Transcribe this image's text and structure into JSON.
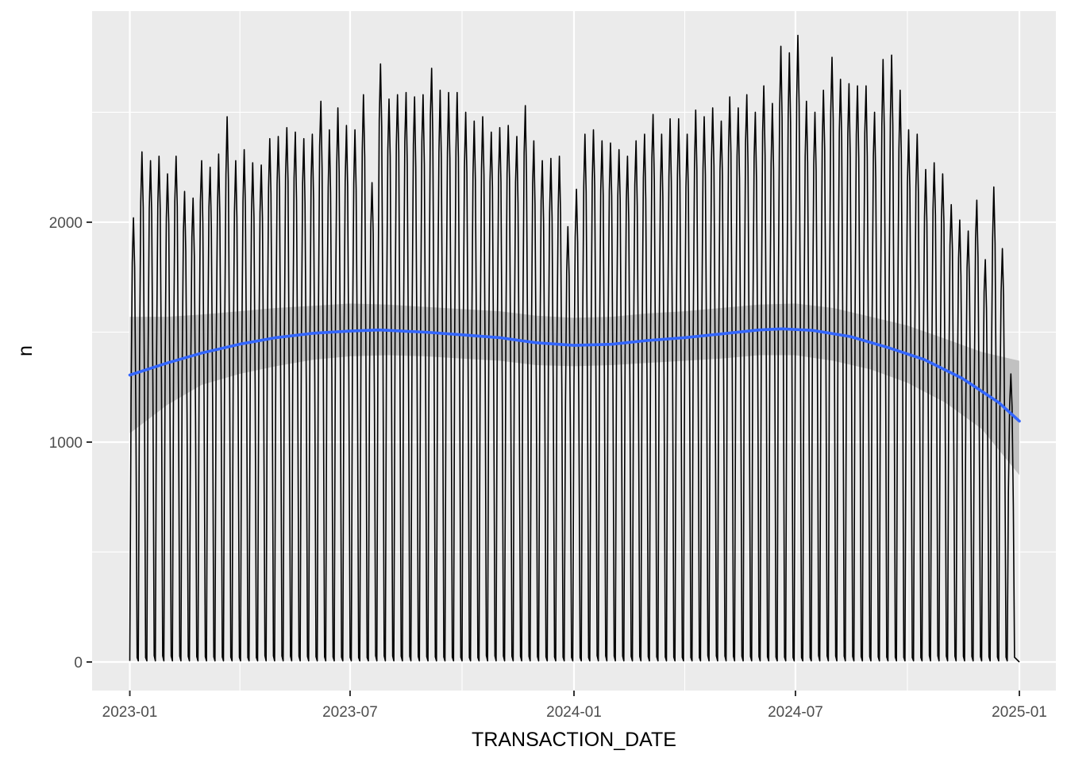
{
  "chart_data": {
    "type": "line",
    "xlabel": "TRANSACTION_DATE",
    "ylabel": "n",
    "x_range": [
      "2022-12-01",
      "2025-01-31"
    ],
    "ylim": [
      -130,
      2960
    ],
    "x_ticks": [
      {
        "date": "2023-01-01",
        "label": "2023-01"
      },
      {
        "date": "2023-07-01",
        "label": "2023-07"
      },
      {
        "date": "2024-01-01",
        "label": "2024-01"
      },
      {
        "date": "2024-07-01",
        "label": "2024-07"
      },
      {
        "date": "2025-01-01",
        "label": "2025-01"
      }
    ],
    "y_ticks": [
      {
        "value": 0,
        "label": "0"
      },
      {
        "value": 1000,
        "label": "1000"
      },
      {
        "value": 2000,
        "label": "2000"
      }
    ],
    "grid": true,
    "legend": "none",
    "colors": {
      "panel_background": "#ebebeb",
      "grid": "#ffffff",
      "series_line": "#000000",
      "smooth_line": "#3366ff",
      "confidence_band": "#b3b3b3"
    },
    "series": [
      {
        "kind": "daily_counts",
        "weekly_cycle": "weekday highs, weekend lows near 0",
        "weekly_peaks": [
          [
            "2023-01-04",
            2020
          ],
          [
            "2023-01-11",
            2320
          ],
          [
            "2023-01-18",
            2280
          ],
          [
            "2023-01-25",
            2300
          ],
          [
            "2023-02-01",
            2220
          ],
          [
            "2023-02-08",
            2300
          ],
          [
            "2023-02-15",
            2140
          ],
          [
            "2023-02-22",
            2110
          ],
          [
            "2023-03-01",
            2280
          ],
          [
            "2023-03-08",
            2250
          ],
          [
            "2023-03-15",
            2310
          ],
          [
            "2023-03-22",
            2480
          ],
          [
            "2023-03-29",
            2280
          ],
          [
            "2023-04-05",
            2330
          ],
          [
            "2023-04-12",
            2270
          ],
          [
            "2023-04-19",
            2260
          ],
          [
            "2023-04-26",
            2380
          ],
          [
            "2023-05-03",
            2390
          ],
          [
            "2023-05-10",
            2430
          ],
          [
            "2023-05-17",
            2410
          ],
          [
            "2023-05-24",
            2380
          ],
          [
            "2023-05-31",
            2400
          ],
          [
            "2023-06-07",
            2550
          ],
          [
            "2023-06-14",
            2420
          ],
          [
            "2023-06-21",
            2520
          ],
          [
            "2023-06-28",
            2440
          ],
          [
            "2023-07-05",
            2420
          ],
          [
            "2023-07-12",
            2580
          ],
          [
            "2023-07-19",
            2180
          ],
          [
            "2023-07-26",
            2720
          ],
          [
            "2023-08-02",
            2560
          ],
          [
            "2023-08-09",
            2580
          ],
          [
            "2023-08-16",
            2590
          ],
          [
            "2023-08-23",
            2570
          ],
          [
            "2023-08-30",
            2580
          ],
          [
            "2023-09-06",
            2700
          ],
          [
            "2023-09-13",
            2600
          ],
          [
            "2023-09-20",
            2590
          ],
          [
            "2023-09-27",
            2590
          ],
          [
            "2023-10-04",
            2500
          ],
          [
            "2023-10-11",
            2460
          ],
          [
            "2023-10-18",
            2480
          ],
          [
            "2023-10-25",
            2410
          ],
          [
            "2023-11-01",
            2430
          ],
          [
            "2023-11-08",
            2440
          ],
          [
            "2023-11-15",
            2390
          ],
          [
            "2023-11-22",
            2530
          ],
          [
            "2023-11-29",
            2370
          ],
          [
            "2023-12-06",
            2280
          ],
          [
            "2023-12-13",
            2290
          ],
          [
            "2023-12-20",
            2300
          ],
          [
            "2023-12-27",
            1980
          ],
          [
            "2024-01-03",
            2150
          ],
          [
            "2024-01-10",
            2400
          ],
          [
            "2024-01-17",
            2420
          ],
          [
            "2024-01-24",
            2370
          ],
          [
            "2024-01-31",
            2360
          ],
          [
            "2024-02-07",
            2330
          ],
          [
            "2024-02-14",
            2300
          ],
          [
            "2024-02-21",
            2370
          ],
          [
            "2024-02-28",
            2400
          ],
          [
            "2024-03-06",
            2490
          ],
          [
            "2024-03-13",
            2400
          ],
          [
            "2024-03-20",
            2470
          ],
          [
            "2024-03-27",
            2470
          ],
          [
            "2024-04-03",
            2400
          ],
          [
            "2024-04-10",
            2510
          ],
          [
            "2024-04-17",
            2480
          ],
          [
            "2024-04-24",
            2520
          ],
          [
            "2024-05-01",
            2460
          ],
          [
            "2024-05-08",
            2570
          ],
          [
            "2024-05-15",
            2520
          ],
          [
            "2024-05-22",
            2580
          ],
          [
            "2024-05-29",
            2500
          ],
          [
            "2024-06-05",
            2620
          ],
          [
            "2024-06-12",
            2540
          ],
          [
            "2024-06-19",
            2800
          ],
          [
            "2024-06-26",
            2770
          ],
          [
            "2024-07-03",
            2850
          ],
          [
            "2024-07-10",
            2550
          ],
          [
            "2024-07-17",
            2500
          ],
          [
            "2024-07-24",
            2600
          ],
          [
            "2024-07-31",
            2750
          ],
          [
            "2024-08-07",
            2650
          ],
          [
            "2024-08-14",
            2630
          ],
          [
            "2024-08-21",
            2620
          ],
          [
            "2024-08-28",
            2620
          ],
          [
            "2024-09-04",
            2500
          ],
          [
            "2024-09-11",
            2740
          ],
          [
            "2024-09-18",
            2760
          ],
          [
            "2024-09-25",
            2600
          ],
          [
            "2024-10-02",
            2420
          ],
          [
            "2024-10-09",
            2400
          ],
          [
            "2024-10-16",
            2240
          ],
          [
            "2024-10-23",
            2270
          ],
          [
            "2024-10-30",
            2220
          ],
          [
            "2024-11-06",
            2080
          ],
          [
            "2024-11-13",
            2010
          ],
          [
            "2024-11-20",
            1960
          ],
          [
            "2024-11-27",
            2100
          ],
          [
            "2024-12-04",
            1830
          ],
          [
            "2024-12-11",
            2160
          ],
          [
            "2024-12-18",
            1880
          ],
          [
            "2024-12-25",
            1310
          ]
        ]
      },
      {
        "kind": "smooth_fit",
        "points": [
          [
            "2023-01-01",
            1305
          ],
          [
            "2023-02-01",
            1360
          ],
          [
            "2023-03-01",
            1405
          ],
          [
            "2023-04-01",
            1445
          ],
          [
            "2023-05-01",
            1475
          ],
          [
            "2023-06-01",
            1495
          ],
          [
            "2023-07-01",
            1505
          ],
          [
            "2023-07-25",
            1510
          ],
          [
            "2023-09-01",
            1500
          ],
          [
            "2023-10-01",
            1488
          ],
          [
            "2023-11-01",
            1475
          ],
          [
            "2023-12-01",
            1452
          ],
          [
            "2024-01-01",
            1440
          ],
          [
            "2024-02-01",
            1445
          ],
          [
            "2024-03-01",
            1462
          ],
          [
            "2024-04-01",
            1475
          ],
          [
            "2024-05-01",
            1492
          ],
          [
            "2024-06-01",
            1510
          ],
          [
            "2024-06-20",
            1515
          ],
          [
            "2024-07-15",
            1508
          ],
          [
            "2024-08-15",
            1480
          ],
          [
            "2024-09-15",
            1430
          ],
          [
            "2024-10-15",
            1375
          ],
          [
            "2024-11-15",
            1290
          ],
          [
            "2024-12-15",
            1180
          ],
          [
            "2025-01-01",
            1095
          ]
        ]
      },
      {
        "kind": "confidence_band",
        "points": [
          [
            "2023-01-01",
            1040,
            1570
          ],
          [
            "2023-02-01",
            1170,
            1570
          ],
          [
            "2023-03-01",
            1260,
            1580
          ],
          [
            "2023-04-01",
            1310,
            1595
          ],
          [
            "2023-05-01",
            1345,
            1610
          ],
          [
            "2023-06-01",
            1375,
            1620
          ],
          [
            "2023-07-01",
            1390,
            1630
          ],
          [
            "2023-08-01",
            1395,
            1625
          ],
          [
            "2023-09-01",
            1390,
            1615
          ],
          [
            "2023-10-01",
            1380,
            1605
          ],
          [
            "2023-11-01",
            1370,
            1595
          ],
          [
            "2023-12-01",
            1350,
            1575
          ],
          [
            "2024-01-01",
            1345,
            1565
          ],
          [
            "2024-02-01",
            1350,
            1570
          ],
          [
            "2024-03-01",
            1360,
            1585
          ],
          [
            "2024-04-01",
            1370,
            1595
          ],
          [
            "2024-05-01",
            1380,
            1610
          ],
          [
            "2024-06-01",
            1395,
            1625
          ],
          [
            "2024-07-01",
            1395,
            1630
          ],
          [
            "2024-08-01",
            1370,
            1610
          ],
          [
            "2024-09-01",
            1330,
            1570
          ],
          [
            "2024-10-01",
            1270,
            1530
          ],
          [
            "2024-11-01",
            1180,
            1470
          ],
          [
            "2024-12-01",
            1060,
            1410
          ],
          [
            "2025-01-01",
            850,
            1370
          ]
        ]
      }
    ]
  }
}
